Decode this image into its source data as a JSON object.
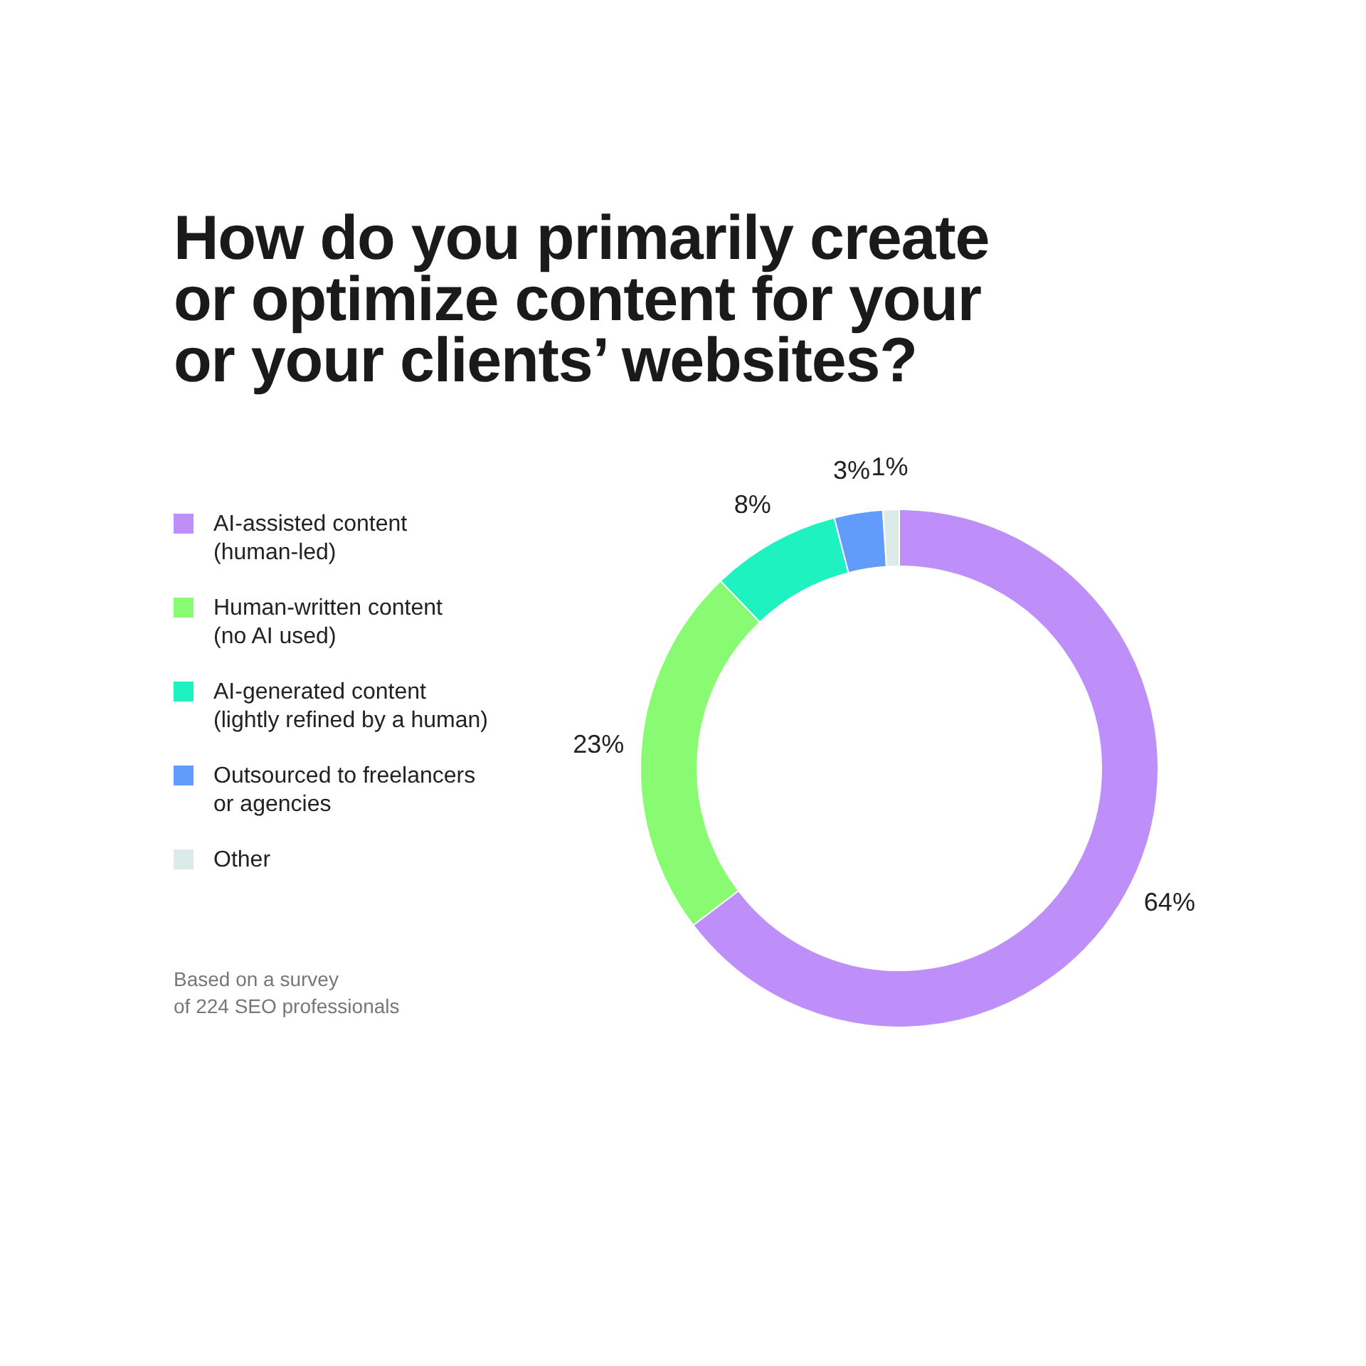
{
  "chart_data": {
    "type": "donut",
    "title": "How do you primarily create or optimize content for your or your clients’ websites?",
    "categories": [
      "AI-assisted content (human-led)",
      "Human-written content (no AI used)",
      "AI-generated content (lightly refined by a human)",
      "Outsourced to freelancers or agencies",
      "Other"
    ],
    "values": [
      64,
      23,
      8,
      3,
      1
    ],
    "colors": [
      "#bf8ff9",
      "#88fb72",
      "#1df2c0",
      "#619cfb",
      "#dcebe8"
    ],
    "value_labels": [
      "64%",
      "23%",
      "8%",
      "3%",
      "1%"
    ],
    "legend": "left",
    "annotations": [
      "Based on a survey of 224 SEO professionals"
    ]
  }
}
